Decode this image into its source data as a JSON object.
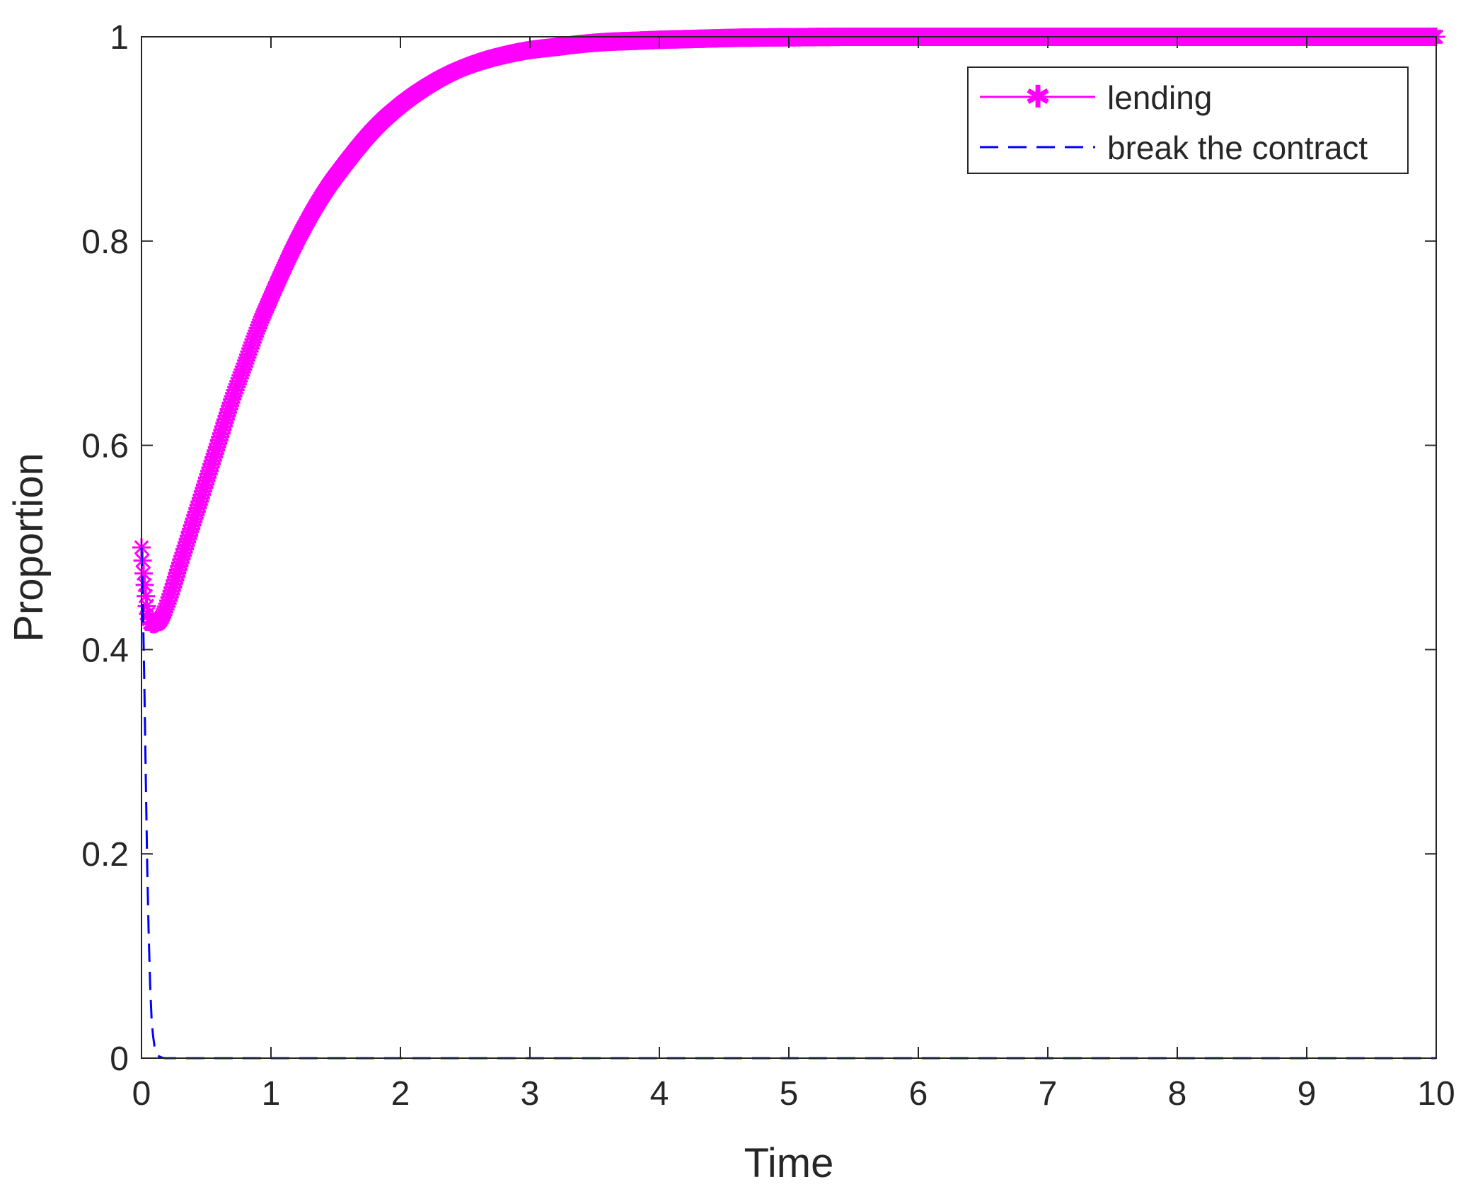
{
  "chart_data": {
    "type": "line",
    "xlabel": "Time",
    "ylabel": "Proportion",
    "xlim": [
      0,
      10
    ],
    "ylim": [
      0,
      1
    ],
    "x_ticks": [
      "0",
      "1",
      "2",
      "3",
      "4",
      "5",
      "6",
      "7",
      "8",
      "9",
      "10"
    ],
    "y_ticks": [
      "0",
      "0.2",
      "0.4",
      "0.6",
      "0.8",
      "1"
    ],
    "grid": false,
    "legend_position": "top-right",
    "series": [
      {
        "name": "lending",
        "color": "#ff00ff",
        "line_style": "solid",
        "marker": "asterisk",
        "x": [
          0,
          0.02,
          0.05,
          0.08,
          0.1,
          0.15,
          0.2,
          0.3,
          0.4,
          0.5,
          0.6,
          0.7,
          0.8,
          0.9,
          1.0,
          1.2,
          1.4,
          1.6,
          1.8,
          2.0,
          2.2,
          2.4,
          2.6,
          2.8,
          3.0,
          3.2,
          3.4,
          3.6,
          3.8,
          4.0,
          4.3,
          4.6,
          5.0,
          5.5,
          6.0,
          7.0,
          8.0,
          9.0,
          10.0
        ],
        "y": [
          0.5,
          0.47,
          0.435,
          0.425,
          0.425,
          0.43,
          0.445,
          0.485,
          0.525,
          0.565,
          0.605,
          0.645,
          0.68,
          0.715,
          0.745,
          0.8,
          0.845,
          0.88,
          0.91,
          0.933,
          0.951,
          0.965,
          0.975,
          0.982,
          0.987,
          0.99,
          0.993,
          0.995,
          0.996,
          0.997,
          0.998,
          0.999,
          0.9995,
          1.0,
          1.0,
          1.0,
          1.0,
          1.0,
          1.0
        ]
      },
      {
        "name": "break the contract",
        "color": "#0000ff",
        "line_style": "dashed",
        "marker": "none",
        "x": [
          0,
          0.01,
          0.02,
          0.03,
          0.04,
          0.05,
          0.06,
          0.07,
          0.08,
          0.1,
          0.12,
          0.15,
          0.2,
          0.3,
          1,
          2,
          3,
          4,
          5,
          6,
          7,
          8,
          9,
          10
        ],
        "y": [
          0.5,
          0.45,
          0.38,
          0.3,
          0.22,
          0.15,
          0.1,
          0.06,
          0.035,
          0.012,
          0.004,
          0.001,
          0,
          0,
          0,
          0,
          0,
          0,
          0,
          0,
          0,
          0,
          0,
          0
        ]
      }
    ]
  }
}
